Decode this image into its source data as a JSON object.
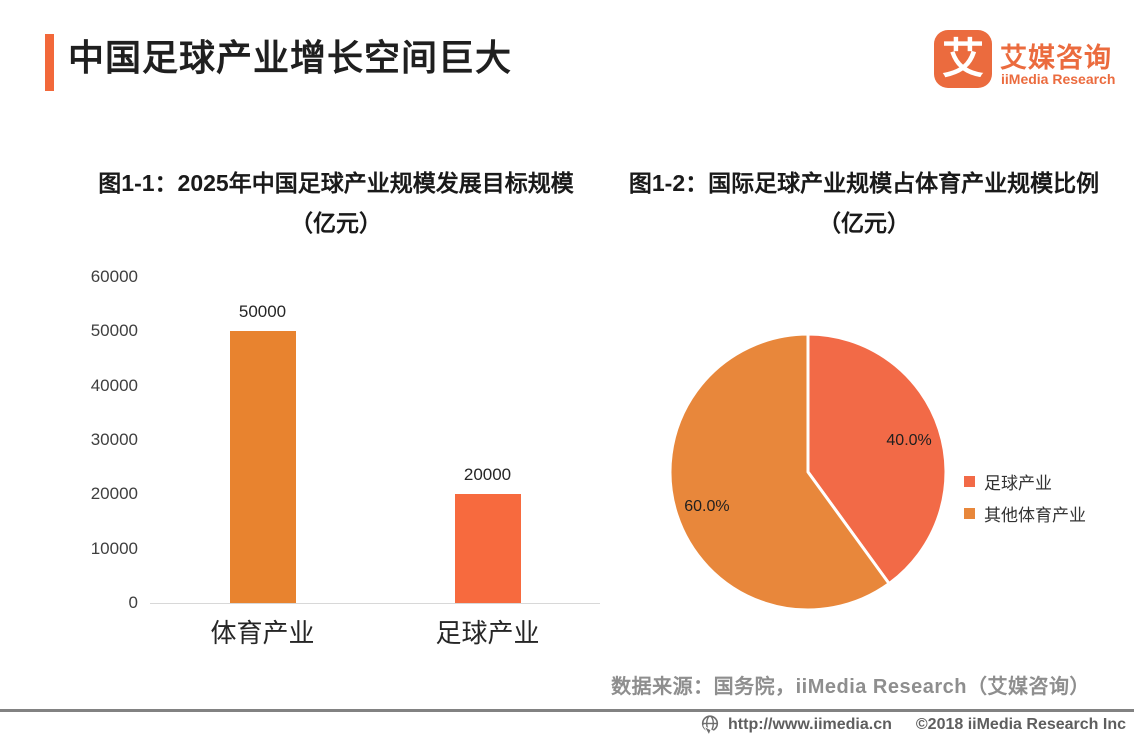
{
  "header": {
    "title": "中国足球产业增长空间巨大",
    "logo": {
      "glyph": "艾",
      "name_cn": "艾媒咨询",
      "name_en": "iiMedia Research"
    }
  },
  "chart_data": [
    {
      "type": "bar",
      "title": "图1-1：2025年中国足球产业规模发展目标规模",
      "subtitle": "（亿元）",
      "categories": [
        "体育产业",
        "足球产业"
      ],
      "values": [
        50000,
        20000
      ],
      "value_labels": [
        "50000",
        "20000"
      ],
      "colors": [
        "#E8832F",
        "#F76A3E"
      ],
      "ylim": [
        0,
        60000
      ],
      "ytick_step": 10000,
      "grid": false,
      "xlabel": "",
      "ylabel": ""
    },
    {
      "type": "pie",
      "title": "图1-2：国际足球产业规模占体育产业规模比例",
      "subtitle": "（亿元）",
      "start_angle_deg": 0,
      "direction": "clockwise",
      "legend_position": "right",
      "slices": [
        {
          "label": "足球产业",
          "value": 40.0,
          "display": "40.0%",
          "color": "#F26A47"
        },
        {
          "label": "其他体育产业",
          "value": 60.0,
          "display": "60.0%",
          "color": "#E8873B"
        }
      ]
    }
  ],
  "source_note": "数据来源：国务院，iiMedia Research（艾媒咨询）",
  "footer": {
    "url": "http://www.iimedia.cn",
    "copyright": "©2018  iiMedia Research Inc"
  },
  "colors": {
    "accent": "#F2683A",
    "brand": "#EB6B3E",
    "axis_line": "#D8D8D8",
    "footer_line": "#828282"
  }
}
